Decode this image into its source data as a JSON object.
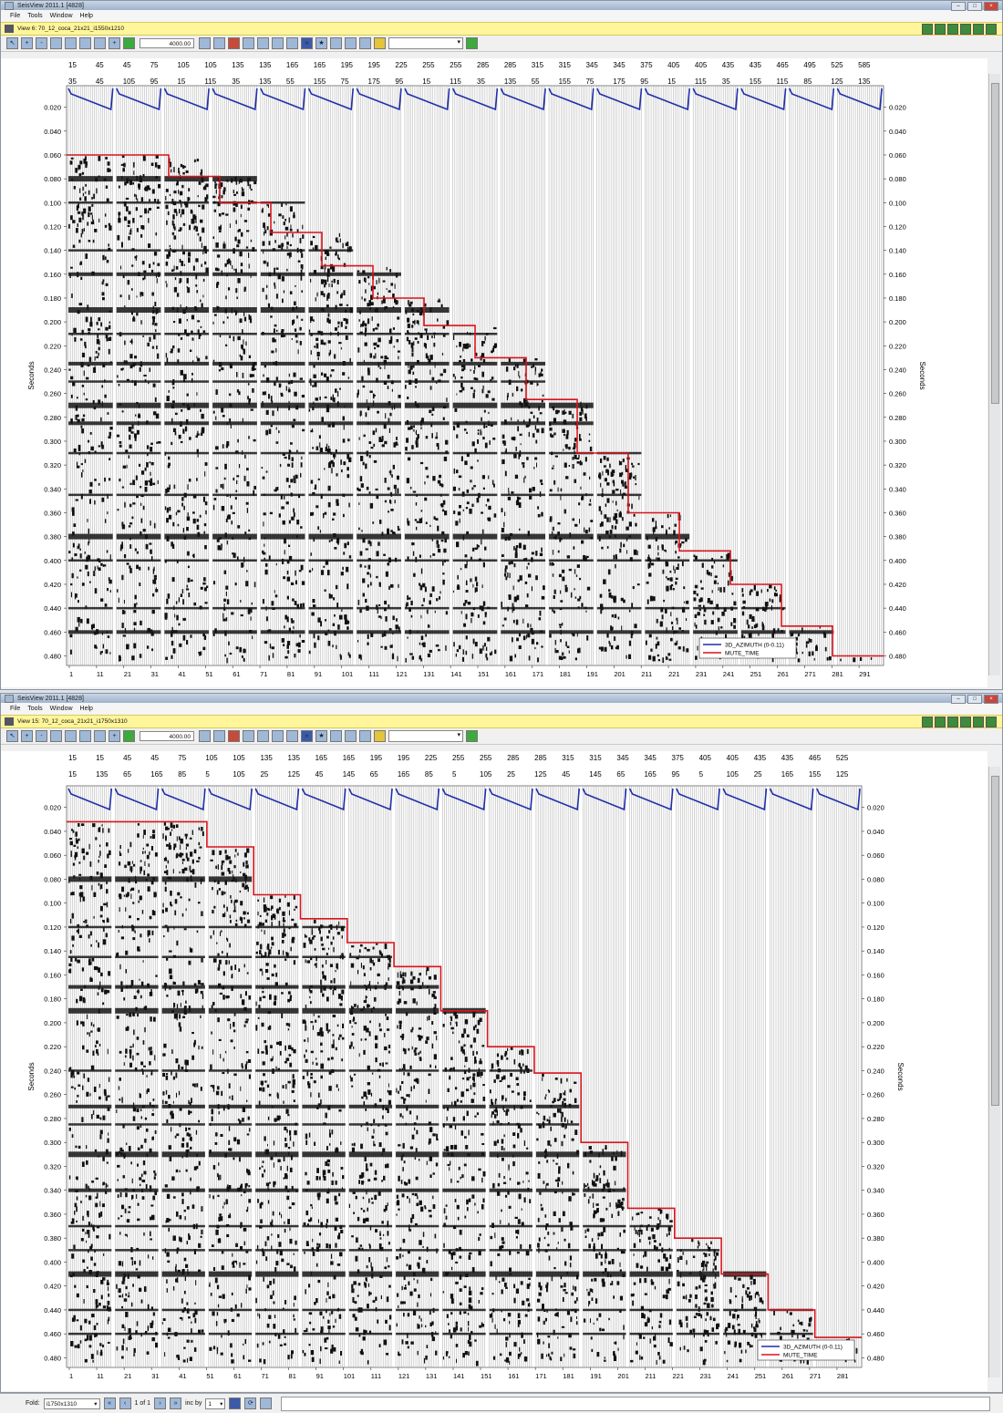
{
  "top": {
    "app_title": "SeisView 2011.1 [4828]",
    "menu": [
      "File",
      "Tools",
      "Window",
      "Help"
    ],
    "view_title": "View 6: 70_12_coca_21x21_i1550x1210",
    "scale_value": "4000.00",
    "header_row1": [
      "15",
      "45",
      "45",
      "75",
      "105",
      "105",
      "135",
      "135",
      "165",
      "165",
      "195",
      "195",
      "225",
      "255",
      "255",
      "285",
      "285",
      "315",
      "315",
      "345",
      "345",
      "375",
      "405",
      "405",
      "435",
      "435",
      "465",
      "495",
      "525",
      "585"
    ],
    "header_row2": [
      "35",
      "45",
      "105",
      "95",
      "15",
      "115",
      "35",
      "135",
      "55",
      "155",
      "75",
      "175",
      "95",
      "15",
      "115",
      "35",
      "135",
      "55",
      "155",
      "75",
      "175",
      "95",
      "15",
      "115",
      "35",
      "155",
      "115",
      "85",
      "125",
      "135"
    ],
    "time_labels": [
      "0.020",
      "0.040",
      "0.060",
      "0.080",
      "0.100",
      "0.120",
      "0.140",
      "0.160",
      "0.180",
      "0.200",
      "0.220",
      "0.240",
      "0.260",
      "0.280",
      "0.300",
      "0.320",
      "0.340",
      "0.360",
      "0.380",
      "0.400",
      "0.420",
      "0.440",
      "0.460",
      "0.480"
    ],
    "trace_labels": [
      "1",
      "11",
      "21",
      "31",
      "41",
      "51",
      "61",
      "71",
      "81",
      "91",
      "101",
      "111",
      "121",
      "131",
      "141",
      "151",
      "161",
      "171",
      "181",
      "191",
      "201",
      "211",
      "221",
      "231",
      "241",
      "251",
      "261",
      "271",
      "281",
      "291"
    ],
    "axis_label": "Seconds",
    "legend": [
      "3D_AZIMUTH (0-0.11)",
      "MUTE_TIME"
    ],
    "mute_times": [
      0.06,
      0.06,
      0.078,
      0.1,
      0.125,
      0.153,
      0.18,
      0.203,
      0.23,
      0.265,
      0.31,
      0.36,
      0.392,
      0.42,
      0.455,
      0.48
    ],
    "event_times": [
      0.08,
      0.1,
      0.14,
      0.16,
      0.19,
      0.21,
      0.235,
      0.25,
      0.27,
      0.285,
      0.31,
      0.345,
      0.38,
      0.4,
      0.44,
      0.46
    ]
  },
  "bottom": {
    "app_title": "SeisView 2011.1 [4828]",
    "menu": [
      "File",
      "Tools",
      "Window",
      "Help"
    ],
    "view_title": "View 15: 70_12_coca_21x21_i1750x1310",
    "scale_value": "4000.00",
    "header_row1": [
      "15",
      "15",
      "45",
      "45",
      "75",
      "105",
      "105",
      "135",
      "135",
      "165",
      "165",
      "195",
      "195",
      "225",
      "255",
      "255",
      "285",
      "285",
      "315",
      "315",
      "345",
      "345",
      "375",
      "405",
      "405",
      "435",
      "435",
      "465",
      "525"
    ],
    "header_row2": [
      "15",
      "135",
      "65",
      "165",
      "85",
      "5",
      "105",
      "25",
      "125",
      "45",
      "145",
      "65",
      "165",
      "85",
      "5",
      "105",
      "25",
      "125",
      "45",
      "145",
      "65",
      "165",
      "95",
      "5",
      "105",
      "25",
      "165",
      "155",
      "125"
    ],
    "time_labels": [
      "0.020",
      "0.040",
      "0.060",
      "0.080",
      "0.100",
      "0.120",
      "0.140",
      "0.160",
      "0.180",
      "0.200",
      "0.220",
      "0.240",
      "0.260",
      "0.280",
      "0.300",
      "0.320",
      "0.340",
      "0.360",
      "0.380",
      "0.400",
      "0.420",
      "0.440",
      "0.460",
      "0.480"
    ],
    "trace_labels": [
      "1",
      "11",
      "21",
      "31",
      "41",
      "51",
      "61",
      "71",
      "81",
      "91",
      "101",
      "111",
      "121",
      "131",
      "141",
      "151",
      "161",
      "171",
      "181",
      "191",
      "201",
      "211",
      "221",
      "231",
      "241",
      "251",
      "261",
      "271",
      "281"
    ],
    "axis_label": "Seconds",
    "legend": [
      "3D_AZIMUTH (0-0.11)",
      "MUTE_TIME"
    ],
    "mute_times": [
      0.032,
      0.032,
      0.032,
      0.053,
      0.093,
      0.113,
      0.133,
      0.153,
      0.19,
      0.22,
      0.242,
      0.3,
      0.355,
      0.38,
      0.41,
      0.44,
      0.463
    ],
    "event_times": [
      0.08,
      0.12,
      0.145,
      0.17,
      0.19,
      0.24,
      0.27,
      0.285,
      0.31,
      0.34,
      0.37,
      0.39,
      0.41,
      0.44,
      0.46
    ]
  },
  "status": {
    "label": "Fold:",
    "select_value": "i1750x1310",
    "page": "1 of 1",
    "inc_label": "inc by",
    "inc_value": "1"
  },
  "colors": {
    "azimuth": "#1f2fa8",
    "mute": "#d8141c",
    "viewbar": "#fff59a"
  }
}
